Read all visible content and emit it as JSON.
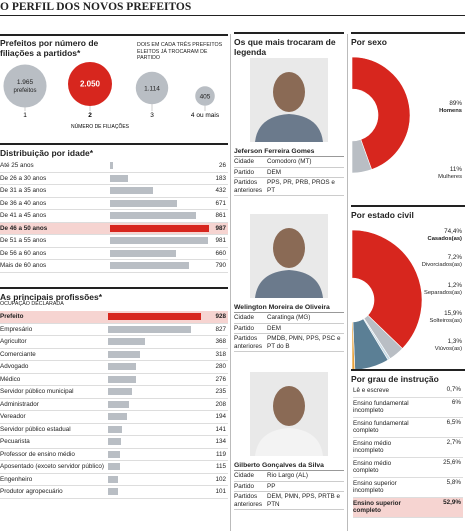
{
  "title": "O PERFIL DOS NOVOS PREFEITOS",
  "filiacoes": {
    "title": "Prefeitos por número de filiações a partidos*",
    "note": "DOIS EM CADA TRÊS PREFEITOS ELEITOS JÁ TROCARAM DE PARTIDO",
    "axis_label": "NÚMERO DE FILIAÇÕES",
    "circles": [
      {
        "category": "1",
        "count": {
          "value": 1965,
          "label": "1.965"
        },
        "caption": "prefeitos",
        "color": "#b9bec4"
      },
      {
        "category": "2",
        "count": {
          "value": 2050,
          "label": "2.050"
        },
        "color": "#d7261e"
      },
      {
        "category": "3",
        "count": {
          "value": 1114,
          "label": "1.114"
        },
        "color": "#b9bec4"
      },
      {
        "category": "4 ou mais",
        "count": {
          "value": 405,
          "label": "405"
        },
        "color": "#b9bec4"
      }
    ]
  },
  "idade": {
    "title": "Distribuição por idade*",
    "rows": [
      {
        "label": "Até 25 anos",
        "value": 26
      },
      {
        "label": "De 26 a 30 anos",
        "value": 183
      },
      {
        "label": "De 31 a 35 anos",
        "value": 432
      },
      {
        "label": "De 36 a 40 anos",
        "value": 671
      },
      {
        "label": "De 41 a 45 anos",
        "value": 861
      },
      {
        "label": "De 46 a 50 anos",
        "value": 987,
        "highlighted": true
      },
      {
        "label": "De 51 a 55 anos",
        "value": 981
      },
      {
        "label": "De 56 a 60 anos",
        "value": 660
      },
      {
        "label": "Mais de 60 anos",
        "value": 790
      }
    ]
  },
  "profissoes": {
    "title": "As principais profissões*",
    "subtitle": "OCUPAÇÃO DECLARADA",
    "rows": [
      {
        "label": "Prefeito",
        "value": 928,
        "highlighted": true
      },
      {
        "label": "Empresário",
        "value": 827
      },
      {
        "label": "Agricultor",
        "value": 368
      },
      {
        "label": "Comerciante",
        "value": 318
      },
      {
        "label": "Advogado",
        "value": 280
      },
      {
        "label": "Médico",
        "value": 276
      },
      {
        "label": "Servidor público municipal",
        "value": 235
      },
      {
        "label": "Administrador",
        "value": 208
      },
      {
        "label": "Vereador",
        "value": 194
      },
      {
        "label": "Servidor público estadual",
        "value": 141
      },
      {
        "label": "Pecuarista",
        "value": 134
      },
      {
        "label": "Professor de ensino médio",
        "value": 119
      },
      {
        "label": "Aposentado (exceto servidor público)",
        "value": 115
      },
      {
        "label": "Engenheiro",
        "value": 102
      },
      {
        "label": "Produtor agropecuário",
        "value": 101
      }
    ]
  },
  "trocaram": {
    "title": "Os que mais trocaram de legenda",
    "people": [
      {
        "name": "Jeferson Ferreira Gomes",
        "fields": [
          [
            "Cidade",
            "Comodoro (MT)"
          ],
          [
            "Partido",
            "DEM"
          ],
          [
            "Partidos anteriores",
            "PPS, PR, PRB, PROS e PT"
          ]
        ]
      },
      {
        "name": "Welington Moreira de Oliveira",
        "fields": [
          [
            "Cidade",
            "Caratinga (MG)"
          ],
          [
            "Partido",
            "DEM"
          ],
          [
            "Partidos anteriores",
            "PMDB, PMN, PPS, PSC e PT do B"
          ]
        ]
      },
      {
        "name": "Gilberto Gonçalves da Silva",
        "fields": [
          [
            "Cidade",
            "Rio Largo (AL)"
          ],
          [
            "Partido",
            "PP"
          ],
          [
            "Partidos anteriores",
            "DEM, PMN, PPS, PRTB e PTN"
          ]
        ]
      }
    ]
  },
  "sexo": {
    "title": "Por sexo",
    "slices": [
      {
        "name": "Homens",
        "share": {
          "value": 89,
          "label": "89%"
        },
        "color": "#d7261e"
      },
      {
        "name": "Mulheres",
        "share": {
          "value": 11,
          "label": "11%"
        },
        "color": "#b9bec4"
      }
    ]
  },
  "estado_civil": {
    "title": "Por estado civil",
    "slices": [
      {
        "name": "Casados(as)",
        "share": {
          "value": 74.4,
          "label": "74,4%"
        },
        "color": "#d7261e"
      },
      {
        "name": "Divorciados(as)",
        "share": {
          "value": 7.2,
          "label": "7,2%"
        },
        "color": "#b9bec4"
      },
      {
        "name": "Separados(as)",
        "share": {
          "value": 1.2,
          "label": "1,2%"
        },
        "color": "#c9dbe6"
      },
      {
        "name": "Solteiros(as)",
        "share": {
          "value": 15.9,
          "label": "15,9%"
        },
        "color": "#5b7f95"
      },
      {
        "name": "Viúvos(as)",
        "share": {
          "value": 1.3,
          "label": "1,3%"
        },
        "color": "#e8a13a"
      }
    ]
  },
  "instrucao": {
    "title": "Por grau de instrução",
    "rows": [
      {
        "label": "Lê e escreve",
        "share": "0,7%"
      },
      {
        "label": "Ensino fundamental incompleto",
        "share": "6%"
      },
      {
        "label": "Ensino fundamental completo",
        "share": "6,5%"
      },
      {
        "label": "Ensino médio incompleto",
        "share": "2,7%"
      },
      {
        "label": "Ensino médio completo",
        "share": "25,6%"
      },
      {
        "label": "Ensino superior incompleto",
        "share": "5,8%"
      },
      {
        "label": "Ensino superior completo",
        "share": "52,9%",
        "highlighted": true
      }
    ]
  }
}
